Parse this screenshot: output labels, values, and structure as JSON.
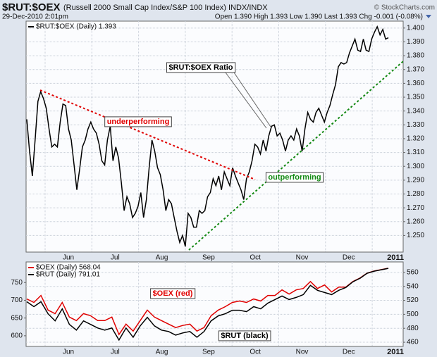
{
  "header": {
    "symbol": "$RUT:$OEX",
    "description": "(Russell 2000 Small Cap Index/S&P 100 Index) INDX/INDX",
    "copyright": "© StockCharts.com",
    "date": "29-Dec-2010 2:01pm",
    "quote": "Open 1.390 High 1.393 Low 1.390 Last 1.393 Chg -0.001 (-0.08%)"
  },
  "chart_data": [
    {
      "type": "line",
      "months": [
        "Jun",
        "Jul",
        "Aug",
        "Sep",
        "Oct",
        "Nov",
        "Dec",
        "2011"
      ],
      "series": [
        {
          "name": "$RUT:$OEX (Daily) 1.393",
          "color": "#000000",
          "values": [
            1.334,
            1.311,
            1.293,
            1.319,
            1.347,
            1.354,
            1.349,
            1.342,
            1.327,
            1.314,
            1.316,
            1.314,
            1.332,
            1.345,
            1.344,
            1.327,
            1.319,
            1.301,
            1.283,
            1.298,
            1.314,
            1.319,
            1.327,
            1.332,
            1.327,
            1.324,
            1.316,
            1.304,
            1.301,
            1.319,
            1.329,
            1.304,
            1.314,
            1.306,
            1.288,
            1.268,
            1.278,
            1.273,
            1.263,
            1.266,
            1.271,
            1.281,
            1.263,
            1.276,
            1.299,
            1.319,
            1.311,
            1.299,
            1.294,
            1.283,
            1.268,
            1.276,
            1.273,
            1.263,
            1.253,
            1.245,
            1.25,
            1.242,
            1.266,
            1.263,
            1.256,
            1.256,
            1.268,
            1.266,
            1.268,
            1.278,
            1.281,
            1.291,
            1.286,
            1.293,
            1.283,
            1.296,
            1.291,
            1.286,
            1.299,
            1.293,
            1.288,
            1.283,
            1.276,
            1.291,
            1.296,
            1.304,
            1.316,
            1.314,
            1.309,
            1.319,
            1.311,
            1.322,
            1.329,
            1.33,
            1.322,
            1.324,
            1.319,
            1.311,
            1.319,
            1.322,
            1.319,
            1.327,
            1.322,
            1.311,
            1.327,
            1.339,
            1.334,
            1.332,
            1.339,
            1.342,
            1.337,
            1.332,
            1.339,
            1.344,
            1.352,
            1.359,
            1.372,
            1.375,
            1.374,
            1.375,
            1.382,
            1.387,
            1.392,
            1.384,
            1.383,
            1.392,
            1.384,
            1.383,
            1.392,
            1.397,
            1.401,
            1.395,
            1.399,
            1.392,
            1.393
          ]
        }
      ],
      "ylim": [
        1.238,
        1.405
      ],
      "yticks": [
        {
          "value": 1.25,
          "label": "1.250"
        },
        {
          "value": 1.26,
          "label": "1.260"
        },
        {
          "value": 1.27,
          "label": "1.270"
        },
        {
          "value": 1.28,
          "label": "1.280"
        },
        {
          "value": 1.29,
          "label": "1.290"
        },
        {
          "value": 1.3,
          "label": "1.300"
        },
        {
          "value": 1.31,
          "label": "1.310"
        },
        {
          "value": 1.32,
          "label": "1.320"
        },
        {
          "value": 1.33,
          "label": "1.330"
        },
        {
          "value": 1.34,
          "label": "1.340"
        },
        {
          "value": 1.35,
          "label": "1.350"
        },
        {
          "value": 1.36,
          "label": "1.360"
        },
        {
          "value": 1.37,
          "label": "1.370"
        },
        {
          "value": 1.38,
          "label": "1.380"
        },
        {
          "value": 1.39,
          "label": "1.390"
        },
        {
          "value": 1.4,
          "label": "1.400"
        }
      ],
      "grid": true,
      "annotations": [
        "$RUT:$OEX Ratio",
        "underperforming",
        "outperforming"
      ]
    },
    {
      "type": "line",
      "months": [
        "Jun",
        "Jul",
        "Aug",
        "Sep",
        "Oct",
        "Nov",
        "Dec",
        "2011"
      ],
      "series": [
        {
          "name": "$OEX (Daily) 568.04",
          "color": "#e00000",
          "axis": "y2",
          "values": [
            522,
            517,
            527,
            506,
            501,
            517,
            496,
            491,
            501,
            498,
            491,
            491,
            496,
            471,
            486,
            476,
            491,
            506,
            496,
            491,
            486,
            481,
            484,
            486,
            476,
            481,
            498,
            506,
            511,
            517,
            519,
            517,
            522,
            519,
            527,
            527,
            535,
            529,
            535,
            537,
            547,
            537,
            542,
            532,
            539,
            539,
            547,
            552,
            559,
            562,
            564,
            566
          ]
        },
        {
          "name": "$RUT (Daily) 791.01",
          "color": "#000000",
          "values": [
            696,
            682,
            696,
            662,
            642,
            676,
            632,
            616,
            642,
            632,
            622,
            616,
            622,
            588,
            622,
            596,
            628,
            652,
            628,
            616,
            612,
            602,
            608,
            612,
            596,
            612,
            642,
            656,
            662,
            672,
            672,
            668,
            682,
            676,
            692,
            702,
            712,
            702,
            708,
            716,
            742,
            728,
            722,
            716,
            728,
            736,
            752,
            762,
            776,
            782,
            786,
            790
          ]
        }
      ],
      "ylim": [
        570,
        808
      ],
      "yticks": [
        600,
        650,
        700,
        750
      ],
      "y2lim": [
        454,
        575
      ],
      "y2ticks": [
        460,
        480,
        500,
        520,
        540,
        560
      ],
      "grid": true,
      "annotations": [
        "$OEX (red)",
        "$RUT (black)"
      ]
    }
  ]
}
